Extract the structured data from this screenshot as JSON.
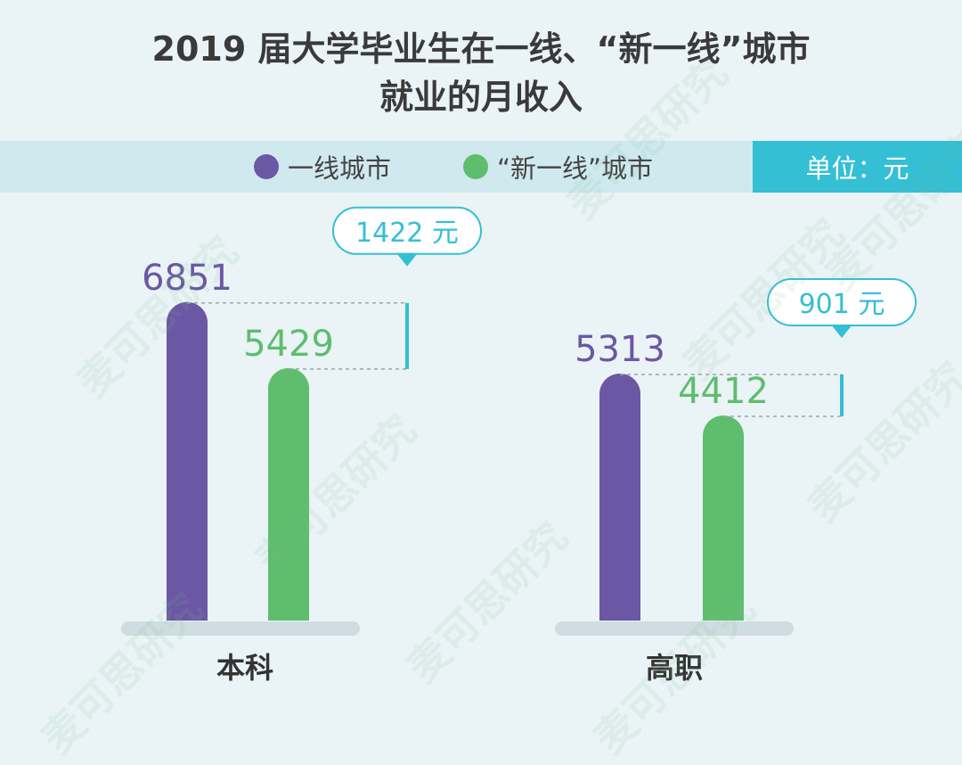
{
  "title": {
    "line1": "2019 届大学毕业生在一线、“新一线”城市",
    "line2": "就业的月收入"
  },
  "legend": {
    "items": [
      {
        "label": "一线城市",
        "color": "#6b57a3"
      },
      {
        "label": "“新一线”城市",
        "color": "#5fbd6e"
      }
    ],
    "unit": "单位：元"
  },
  "colors": {
    "tier1": "#6b57a3",
    "newtier1": "#5fbd6e",
    "accent": "#34bfd4",
    "baseline": "#cfdde2"
  },
  "watermark": "麦可思研究",
  "chart_data": {
    "type": "bar",
    "categories": [
      "本科",
      "高职"
    ],
    "series": [
      {
        "name": "一线城市",
        "values": [
          6851,
          5313
        ]
      },
      {
        "name": "“新一线”城市",
        "values": [
          5429,
          4412
        ]
      }
    ],
    "differences": [
      "1422 元",
      "901 元"
    ],
    "ylim": [
      0,
      7000
    ],
    "unit": "元",
    "legend_position": "top"
  }
}
